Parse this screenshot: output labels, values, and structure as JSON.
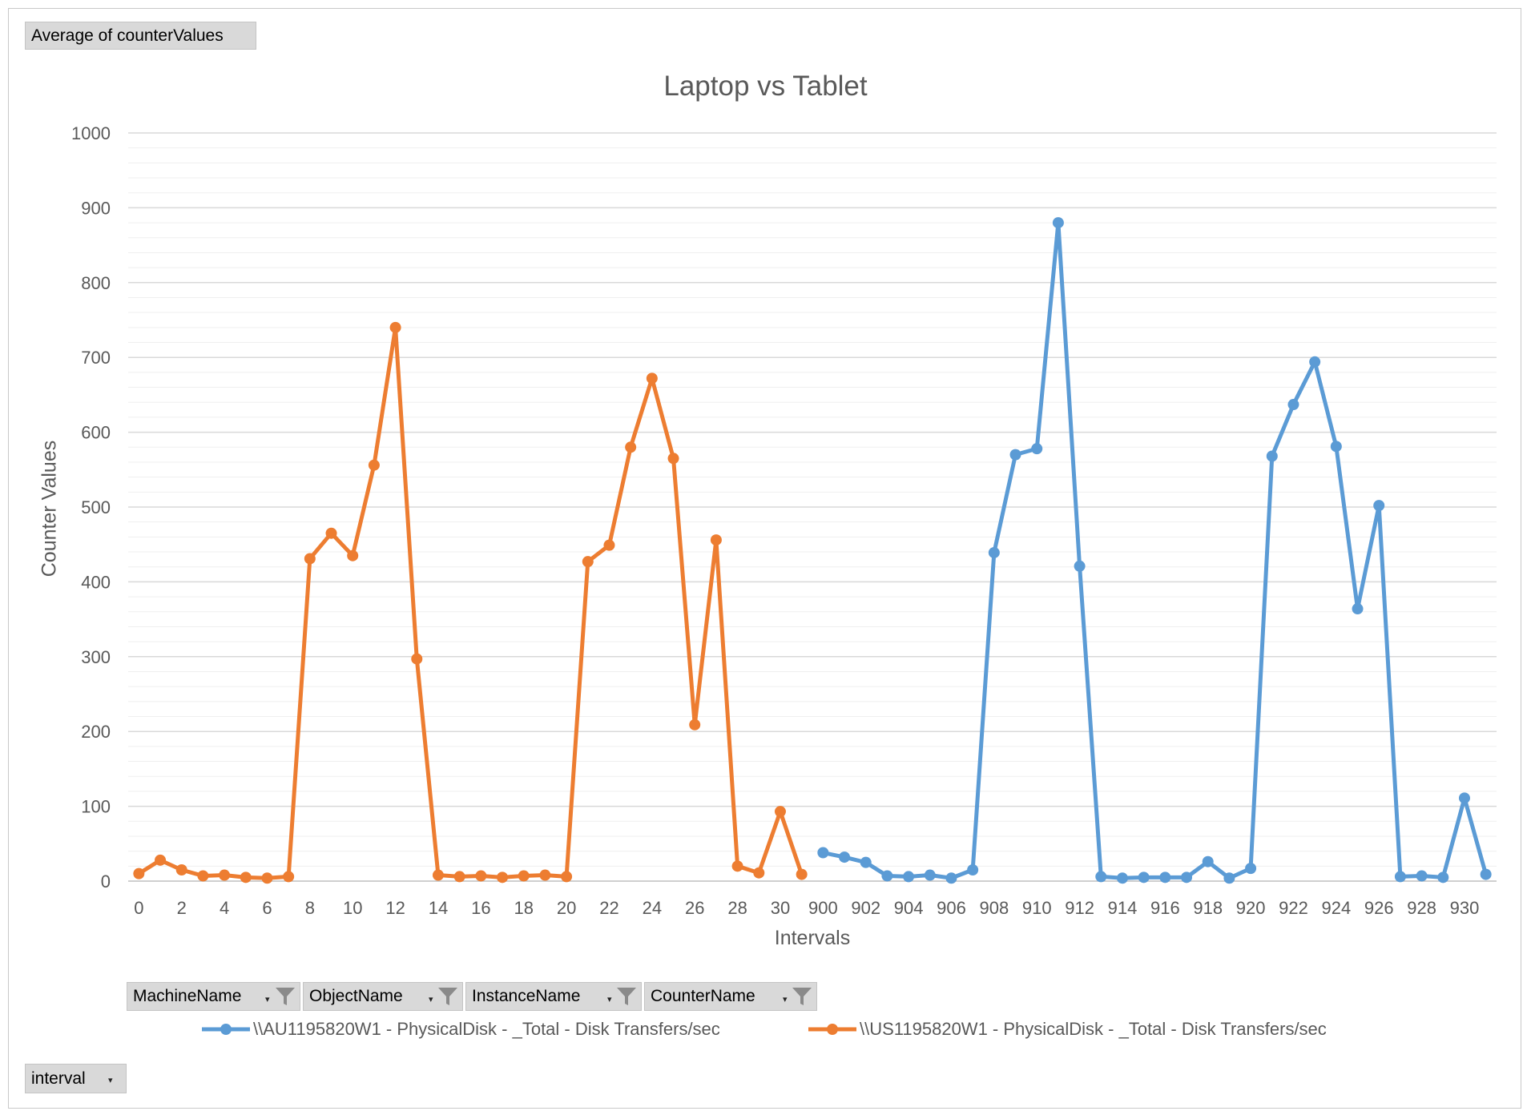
{
  "pivot": {
    "values_button": "Average of counterValues",
    "filter_buttons": [
      "MachineName",
      "ObjectName",
      "InstanceName",
      "CounterName"
    ],
    "axis_button": "interval"
  },
  "chart_data": {
    "type": "line",
    "title": "Laptop vs Tablet",
    "xlabel": "Intervals",
    "ylabel": "Counter Values",
    "ylim": [
      0,
      1000
    ],
    "yticks": [
      0,
      100,
      200,
      300,
      400,
      500,
      600,
      700,
      800,
      900,
      1000
    ],
    "grid": true,
    "legend_position": "bottom",
    "x_tick_labels": [
      "0",
      "2",
      "4",
      "6",
      "8",
      "10",
      "12",
      "14",
      "16",
      "18",
      "20",
      "22",
      "24",
      "26",
      "28",
      "30",
      "900",
      "902",
      "904",
      "906",
      "908",
      "910",
      "912",
      "914",
      "916",
      "918",
      "920",
      "922",
      "924",
      "926",
      "928",
      "930"
    ],
    "categories": [
      "0",
      "1",
      "2",
      "3",
      "4",
      "5",
      "6",
      "7",
      "8",
      "9",
      "10",
      "11",
      "12",
      "13",
      "14",
      "15",
      "16",
      "17",
      "18",
      "19",
      "20",
      "21",
      "22",
      "23",
      "24",
      "25",
      "26",
      "27",
      "28",
      "29",
      "30",
      "31",
      "900",
      "901",
      "902",
      "903",
      "904",
      "905",
      "906",
      "907",
      "908",
      "909",
      "910",
      "911",
      "912",
      "913",
      "914",
      "915",
      "916",
      "917",
      "918",
      "919",
      "920",
      "921",
      "922",
      "923",
      "924",
      "925",
      "926",
      "927",
      "928",
      "929",
      "930",
      "931"
    ],
    "series": [
      {
        "name": "\\\\AU1195820W1 - PhysicalDisk - _Total - Disk Transfers/sec",
        "color": "#5b9bd5",
        "values": [
          null,
          null,
          null,
          null,
          null,
          null,
          null,
          null,
          null,
          null,
          null,
          null,
          null,
          null,
          null,
          null,
          null,
          null,
          null,
          null,
          null,
          null,
          null,
          null,
          null,
          null,
          null,
          null,
          null,
          null,
          null,
          null,
          38,
          32,
          25,
          7,
          6,
          8,
          4,
          15,
          439,
          570,
          578,
          880,
          421,
          6,
          4,
          5,
          5,
          5,
          26,
          4,
          17,
          568,
          637,
          694,
          581,
          364,
          502,
          6,
          7,
          5,
          111,
          9
        ]
      },
      {
        "name": "\\\\US1195820W1 - PhysicalDisk - _Total - Disk Transfers/sec",
        "color": "#ed7d31",
        "values": [
          10,
          28,
          15,
          7,
          8,
          5,
          4,
          6,
          431,
          465,
          435,
          556,
          740,
          297,
          8,
          6,
          7,
          5,
          7,
          8,
          6,
          427,
          449,
          580,
          672,
          565,
          209,
          456,
          20,
          11,
          93,
          9,
          null,
          null,
          null,
          null,
          null,
          null,
          null,
          null,
          null,
          null,
          null,
          null,
          null,
          null,
          null,
          null,
          null,
          null,
          null,
          null,
          null,
          null,
          null,
          null,
          null,
          null,
          null,
          null,
          null,
          null,
          null,
          null
        ]
      }
    ]
  }
}
